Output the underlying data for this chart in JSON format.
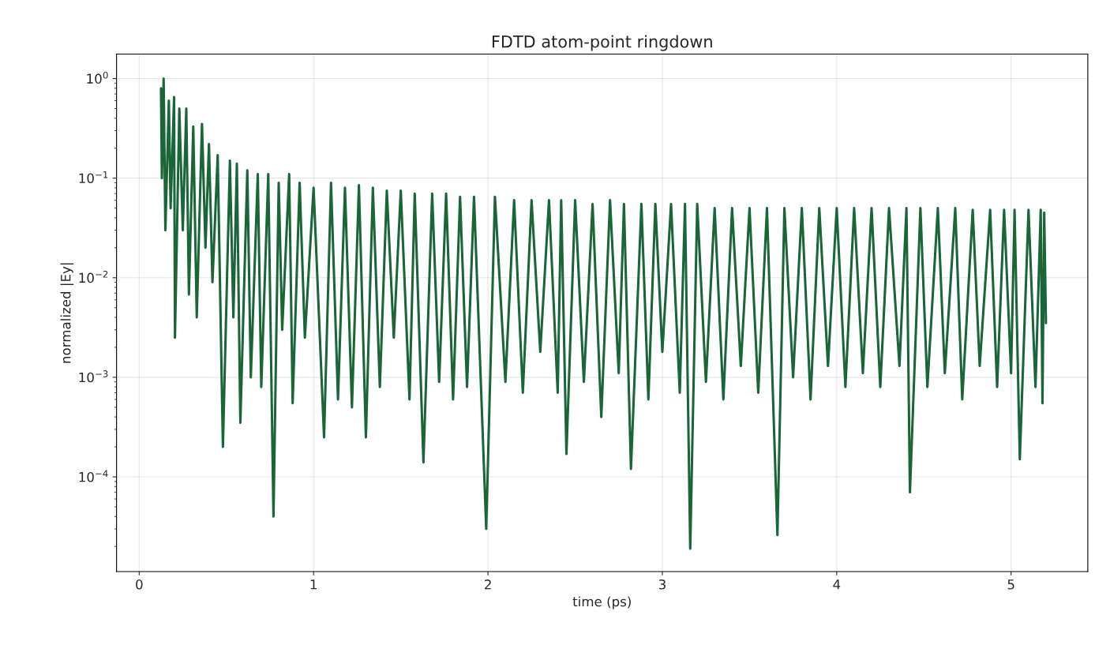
{
  "chart_data": {
    "type": "line",
    "title": "FDTD atom-point ringdown",
    "xlabel": "time (ps)",
    "ylabel": "normalized |Ey|",
    "log": "y",
    "grid": true,
    "legend": false,
    "marker": "none",
    "line_style": "solid",
    "xlim": [
      -0.13,
      5.44
    ],
    "xticks": [
      0,
      1,
      2,
      3,
      4,
      5
    ],
    "ylim": [
      1.12e-05,
      1.76
    ],
    "yticks": [
      {
        "value": 0.0001,
        "label": "10$^{−4}$"
      },
      {
        "value": 0.001,
        "label": "10$^{−3}$"
      },
      {
        "value": 0.01,
        "label": "10$^{−2}$"
      },
      {
        "value": 0.1,
        "label": "10$^{−1}$"
      },
      {
        "value": 1,
        "label": "10$^{0}$"
      }
    ],
    "series": [
      {
        "color": "#1a6638",
        "x": [
          0.125,
          0.13,
          0.14,
          0.15,
          0.17,
          0.18,
          0.2,
          0.205,
          0.23,
          0.25,
          0.27,
          0.285,
          0.31,
          0.33,
          0.36,
          0.38,
          0.4,
          0.42,
          0.45,
          0.48,
          0.52,
          0.54,
          0.56,
          0.58,
          0.62,
          0.64,
          0.68,
          0.7,
          0.74,
          0.77,
          0.8,
          0.82,
          0.86,
          0.88,
          0.92,
          0.95,
          1.0,
          1.06,
          1.1,
          1.14,
          1.18,
          1.22,
          1.26,
          1.3,
          1.34,
          1.38,
          1.42,
          1.46,
          1.5,
          1.55,
          1.58,
          1.63,
          1.68,
          1.72,
          1.76,
          1.8,
          1.84,
          1.88,
          1.92,
          1.99,
          2.04,
          2.1,
          2.15,
          2.2,
          2.25,
          2.3,
          2.35,
          2.4,
          2.42,
          2.45,
          2.5,
          2.55,
          2.6,
          2.65,
          2.7,
          2.75,
          2.78,
          2.82,
          2.88,
          2.92,
          2.96,
          3.0,
          3.05,
          3.1,
          3.13,
          3.16,
          3.2,
          3.25,
          3.3,
          3.35,
          3.4,
          3.45,
          3.5,
          3.55,
          3.6,
          3.66,
          3.7,
          3.75,
          3.8,
          3.85,
          3.9,
          3.95,
          4.0,
          4.05,
          4.1,
          4.15,
          4.2,
          4.25,
          4.3,
          4.36,
          4.4,
          4.42,
          4.48,
          4.52,
          4.58,
          4.62,
          4.68,
          4.72,
          4.78,
          4.82,
          4.88,
          4.92,
          4.96,
          5.0,
          5.02,
          5.05,
          5.1,
          5.14,
          5.17,
          5.18,
          5.19,
          5.2
        ],
        "values": [
          0.8,
          0.1,
          1.0,
          0.03,
          0.6,
          0.05,
          0.65,
          0.0025,
          0.5,
          0.03,
          0.5,
          0.0068,
          0.33,
          0.004,
          0.35,
          0.02,
          0.22,
          0.009,
          0.17,
          0.0002,
          0.15,
          0.004,
          0.14,
          0.00035,
          0.12,
          0.001,
          0.11,
          0.0008,
          0.11,
          4e-05,
          0.09,
          0.003,
          0.11,
          0.00055,
          0.09,
          0.0025,
          0.08,
          0.00025,
          0.09,
          0.0006,
          0.08,
          0.0005,
          0.085,
          0.00025,
          0.08,
          0.0008,
          0.075,
          0.0025,
          0.075,
          0.0006,
          0.07,
          0.00014,
          0.07,
          0.0009,
          0.07,
          0.0006,
          0.065,
          0.0008,
          0.065,
          3e-05,
          0.065,
          0.0009,
          0.06,
          0.0007,
          0.06,
          0.0018,
          0.06,
          0.0007,
          0.06,
          0.00017,
          0.06,
          0.0009,
          0.055,
          0.0004,
          0.06,
          0.0011,
          0.055,
          0.00012,
          0.055,
          0.0006,
          0.055,
          0.0018,
          0.055,
          0.0007,
          0.055,
          1.9e-05,
          0.055,
          0.0009,
          0.05,
          0.0006,
          0.05,
          0.0013,
          0.05,
          0.0007,
          0.05,
          2.6e-05,
          0.05,
          0.001,
          0.05,
          0.0006,
          0.05,
          0.0013,
          0.05,
          0.0008,
          0.05,
          0.0011,
          0.05,
          0.0008,
          0.05,
          0.0013,
          0.05,
          7e-05,
          0.05,
          0.0008,
          0.05,
          0.0011,
          0.05,
          0.0006,
          0.048,
          0.0013,
          0.048,
          0.0008,
          0.048,
          0.0011,
          0.048,
          0.00015,
          0.048,
          0.0008,
          0.048,
          0.00055,
          0.045,
          0.0035
        ]
      }
    ]
  }
}
